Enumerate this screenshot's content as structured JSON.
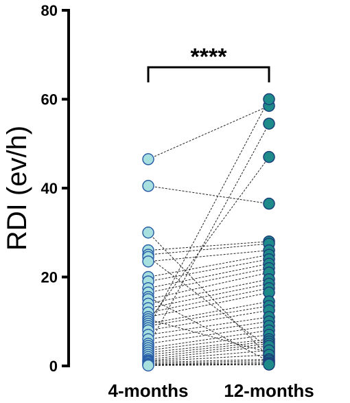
{
  "chart_data": {
    "type": "scatter",
    "subtype": "paired-before-after",
    "categories": [
      "4-months",
      "12-months"
    ],
    "ylabel": "RDI (ev/h)",
    "ylim": [
      0,
      80
    ],
    "yticks": [
      0,
      20,
      40,
      60,
      80
    ],
    "ytick_labels": [
      "0",
      "20",
      "40",
      "60",
      "80"
    ],
    "significance": {
      "label": "****",
      "between": [
        "4-months",
        "12-months"
      ]
    },
    "grid": false,
    "legend": "none",
    "colors": {
      "group1_fill": "#a8e0e0",
      "group1_edge": "#2a5fa8",
      "group2_fill": "#1e8a8a",
      "group2_edge": "#1a3f7a",
      "connector": "#222222",
      "axis": "#000000"
    },
    "pairs": [
      [
        46.5,
        58.5
      ],
      [
        40.5,
        36.5
      ],
      [
        30.0,
        2.0
      ],
      [
        26.0,
        28.0
      ],
      [
        25.0,
        27.5
      ],
      [
        24.5,
        4.0
      ],
      [
        23.5,
        26.0
      ],
      [
        20.0,
        25.0
      ],
      [
        19.0,
        24.0
      ],
      [
        17.5,
        23.0
      ],
      [
        16.5,
        22.0
      ],
      [
        15.5,
        1.0
      ],
      [
        15.0,
        21.0
      ],
      [
        14.0,
        19.5
      ],
      [
        13.0,
        18.5
      ],
      [
        12.0,
        17.5
      ],
      [
        11.0,
        16.5
      ],
      [
        10.5,
        3.0
      ],
      [
        10.0,
        47.0
      ],
      [
        9.5,
        14.5
      ],
      [
        9.0,
        13.5
      ],
      [
        8.5,
        60.0
      ],
      [
        8.0,
        12.5
      ],
      [
        7.0,
        11.0
      ],
      [
        6.0,
        10.0
      ],
      [
        5.0,
        9.0
      ],
      [
        4.5,
        54.5
      ],
      [
        4.0,
        8.0
      ],
      [
        3.5,
        7.0
      ],
      [
        3.0,
        6.0
      ],
      [
        2.5,
        5.5
      ],
      [
        2.0,
        5.0
      ],
      [
        1.5,
        4.5
      ],
      [
        1.2,
        3.5
      ],
      [
        1.0,
        2.5
      ],
      [
        0.8,
        1.5
      ],
      [
        0.5,
        1.2
      ],
      [
        0.3,
        0.8
      ],
      [
        0.2,
        0.5
      ],
      [
        0.1,
        0.3
      ]
    ]
  }
}
